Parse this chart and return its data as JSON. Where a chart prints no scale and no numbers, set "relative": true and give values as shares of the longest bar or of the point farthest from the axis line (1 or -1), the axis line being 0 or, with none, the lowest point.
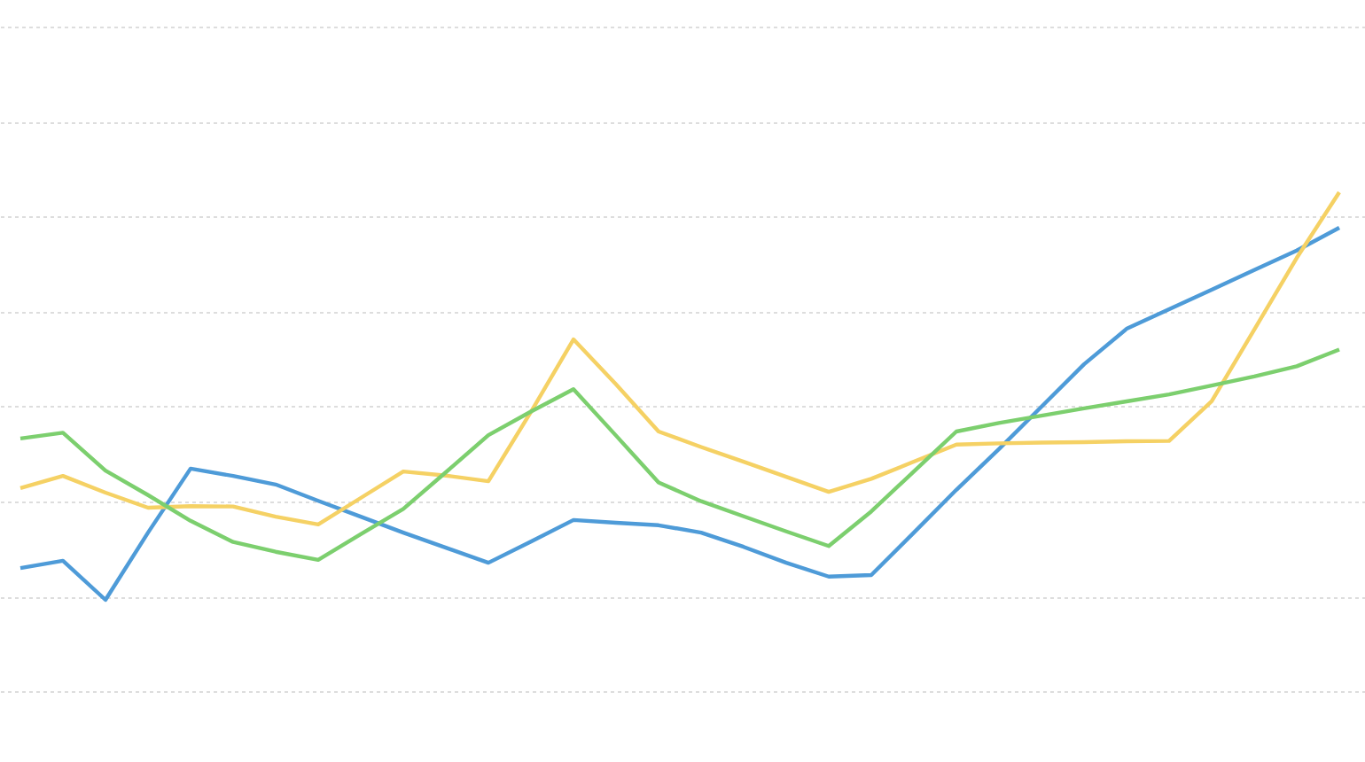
{
  "chart_data": {
    "type": "line",
    "relative": true,
    "grid": "y",
    "marker": "none",
    "line_style": "solid",
    "tick_labels": false,
    "categories": [
      null,
      null,
      null,
      null,
      null,
      null,
      null,
      null,
      null,
      null,
      null,
      null,
      null,
      null,
      null,
      null,
      null,
      null,
      null,
      null,
      null,
      null,
      null,
      null,
      null,
      null,
      null,
      null,
      null,
      null,
      null,
      null
    ],
    "series": [
      {
        "color": "#4e9bd8",
        "values": [
          0.078,
          0.096,
          0,
          0.165,
          0.322,
          0.304,
          0.283,
          0.243,
          0.204,
          0.165,
          0.128,
          0.091,
          0.143,
          0.196,
          0.189,
          0.183,
          0.165,
          0.13,
          0.091,
          0.057,
          0.061,
          0.165,
          0.27,
          0.37,
          0.474,
          0.578,
          0.665,
          0.713,
          0.761,
          0.809,
          0.857,
          0.913
        ]
      },
      {
        "color": "#f5d164",
        "values": [
          0.274,
          0.304,
          0.263,
          0.226,
          0.23,
          0.229,
          0.204,
          0.185,
          0.25,
          0.315,
          0.305,
          0.291,
          0.461,
          0.639,
          0.529,
          0.413,
          0.375,
          0.339,
          0.302,
          0.265,
          0.297,
          0.339,
          0.381,
          0.384,
          0.386,
          0.387,
          0.389,
          0.39,
          0.487,
          0.663,
          0.839,
          1
        ]
      },
      {
        "color": "#7ccf6e",
        "values": [
          0.396,
          0.41,
          0.317,
          0.257,
          0.194,
          0.142,
          0.118,
          0.098,
          0.161,
          0.223,
          0.313,
          0.404,
          0.462,
          0.517,
          0.403,
          0.288,
          0.242,
          0.205,
          0.168,
          0.132,
          0.217,
          0.315,
          0.413,
          0.434,
          0.452,
          0.47,
          0.487,
          0.504,
          0.526,
          0.548,
          0.573,
          0.614
        ]
      }
    ]
  }
}
